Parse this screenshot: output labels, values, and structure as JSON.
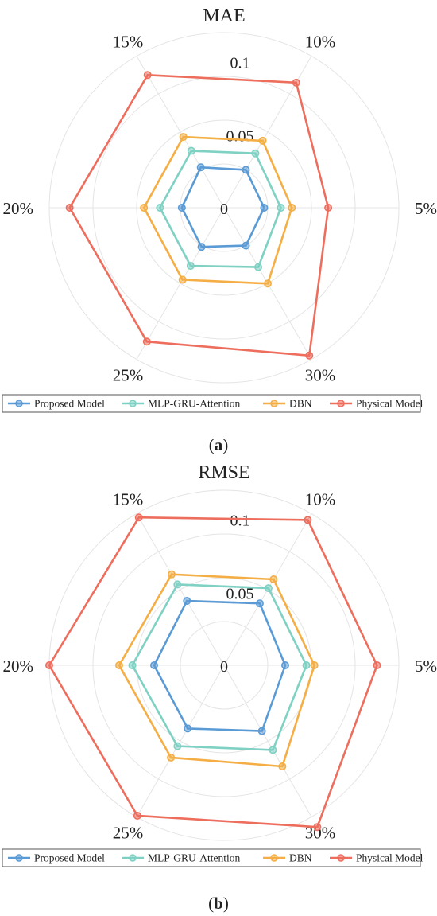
{
  "chart_data": [
    {
      "type": "radar",
      "title": "MAE",
      "categories": [
        "5%",
        "10%",
        "15%",
        "20%",
        "25%",
        "30%"
      ],
      "rlim": [
        0,
        0.12
      ],
      "rticks": [
        "0",
        "0.05",
        "0.1"
      ],
      "rtick_values": [
        0,
        0.05,
        0.1
      ],
      "grid": true,
      "legend_position": "bottom",
      "caption_label": "a",
      "series": [
        {
          "name": "Proposed Model",
          "color": "#5b9bd5",
          "values": [
            0.0275,
            0.03,
            0.032,
            0.029,
            0.031,
            0.03
          ]
        },
        {
          "name": "MLP-GRU-Attention",
          "color": "#7fd1c4",
          "values": [
            0.039,
            0.043,
            0.045,
            0.044,
            0.046,
            0.047
          ]
        },
        {
          "name": "DBN",
          "color": "#f4ae45",
          "values": [
            0.0465,
            0.053,
            0.056,
            0.055,
            0.057,
            0.06
          ]
        },
        {
          "name": "Physical Model",
          "color": "#ee6e5e",
          "values": [
            0.0715,
            0.099,
            0.105,
            0.106,
            0.106,
            0.117
          ]
        }
      ]
    },
    {
      "type": "radar",
      "title": "RMSE",
      "categories": [
        "5%",
        "10%",
        "15%",
        "20%",
        "25%",
        "30%"
      ],
      "rlim": [
        0,
        0.12
      ],
      "rticks": [
        "0",
        "0.05",
        "0.1"
      ],
      "rtick_values": [
        0,
        0.05,
        0.1
      ],
      "grid": true,
      "legend_position": "bottom",
      "caption_label": "b",
      "series": [
        {
          "name": "Proposed Model",
          "color": "#5b9bd5",
          "values": [
            0.042,
            0.049,
            0.051,
            0.048,
            0.05,
            0.052
          ]
        },
        {
          "name": "MLP-GRU-Attention",
          "color": "#7fd1c4",
          "values": [
            0.0565,
            0.061,
            0.064,
            0.063,
            0.064,
            0.067
          ]
        },
        {
          "name": "DBN",
          "color": "#f4ae45",
          "values": [
            0.062,
            0.068,
            0.072,
            0.072,
            0.073,
            0.08
          ]
        },
        {
          "name": "Physical Model",
          "color": "#ee6e5e",
          "values": [
            0.105,
            0.115,
            0.117,
            0.12,
            0.119,
            0.128
          ]
        }
      ]
    }
  ]
}
